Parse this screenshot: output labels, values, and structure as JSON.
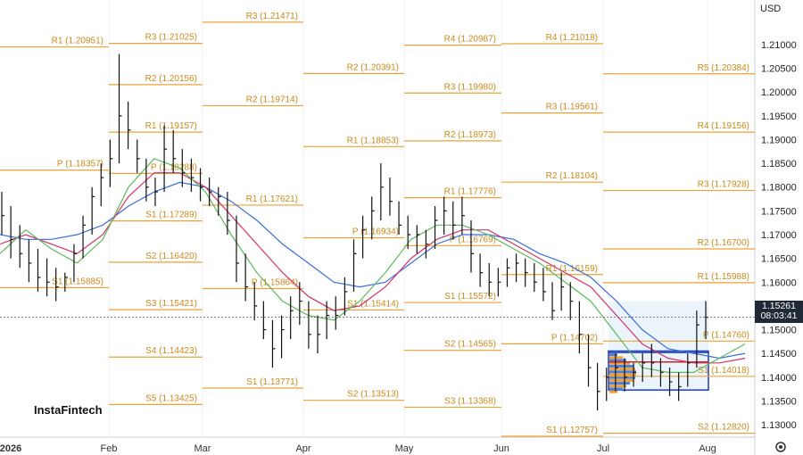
{
  "header": {
    "currency": "USD",
    "logo": "InstaFintech"
  },
  "last_price": {
    "price": "1.15261",
    "countdown": "08:03:41"
  },
  "colors": {
    "pivot_lines": "#e8a33a",
    "pivot_labels": "#c98a1e",
    "ma_blue": "#3b6fd6",
    "ma_red": "#d0336b",
    "ma_green": "#5cb85c",
    "candles": "#111111",
    "volume_profile_frame": "#1f3fb5"
  },
  "chart_data": {
    "type": "line",
    "title": "",
    "xlabel": "",
    "ylabel": "",
    "ylim": [
      1.1255,
      1.2175
    ],
    "x_ticks": [
      "2026",
      "Feb",
      "Mar",
      "Apr",
      "May",
      "Jun",
      "Jul",
      "Aug"
    ],
    "y_ticks": [
      "1.21000",
      "1.20500",
      "1.20000",
      "1.19500",
      "1.19000",
      "1.18500",
      "1.18000",
      "1.17500",
      "1.17000",
      "1.16500",
      "1.16000",
      "1.15500",
      "1.15000",
      "1.14500",
      "1.14000",
      "1.13500",
      "1.13000"
    ],
    "y_values": [
      1.21,
      1.205,
      1.2,
      1.195,
      1.19,
      1.185,
      1.18,
      1.175,
      1.17,
      1.165,
      1.16,
      1.155,
      1.15,
      1.145,
      1.14,
      1.135,
      1.13
    ],
    "pivot_periods": [
      {
        "month": "Feb",
        "levels": [
          {
            "label": "R1 (1.20951)",
            "value": 1.20951
          },
          {
            "label": "P (1.18357)",
            "value": 1.18357
          },
          {
            "label": "S1 (1.15885)",
            "value": 1.15885
          }
        ]
      },
      {
        "month": "Mar",
        "levels": [
          {
            "label": "R3 (1.21025)",
            "value": 1.21025
          },
          {
            "label": "R2 (1.20156)",
            "value": 1.20156
          },
          {
            "label": "R1 (1.19157)",
            "value": 1.19157
          },
          {
            "label": "P (1.18288)",
            "value": 1.18288
          },
          {
            "label": "S1 (1.17289)",
            "value": 1.17289
          },
          {
            "label": "S2 (1.16420)",
            "value": 1.1642
          },
          {
            "label": "S3 (1.15421)",
            "value": 1.15421
          },
          {
            "label": "S4 (1.14423)",
            "value": 1.14423
          },
          {
            "label": "S5 (1.13425)",
            "value": 1.13425
          }
        ]
      },
      {
        "month": "Apr",
        "levels": [
          {
            "label": "R3 (1.21471)",
            "value": 1.21471
          },
          {
            "label": "R2 (1.19714)",
            "value": 1.19714
          },
          {
            "label": "R1 (1.17621)",
            "value": 1.17621
          },
          {
            "label": "P (1.15864)",
            "value": 1.15864
          },
          {
            "label": "S1 (1.13771)",
            "value": 1.13771
          }
        ]
      },
      {
        "month": "May",
        "levels": [
          {
            "label": "R2 (1.20391)",
            "value": 1.20391
          },
          {
            "label": "R1 (1.18853)",
            "value": 1.18853
          },
          {
            "label": "P (1.16934)",
            "value": 1.16934
          },
          {
            "label": "S1 (1.15414)",
            "value": 1.15414
          },
          {
            "label": "S2 (1.13513)",
            "value": 1.13513
          }
        ]
      },
      {
        "month": "Jun",
        "levels": [
          {
            "label": "R4 (1.20987)",
            "value": 1.20987
          },
          {
            "label": "R3 (1.19980)",
            "value": 1.1998
          },
          {
            "label": "R2 (1.18973)",
            "value": 1.18973
          },
          {
            "label": "R1 (1.17776)",
            "value": 1.17776
          },
          {
            "label": "P (1.16769)",
            "value": 1.16769
          },
          {
            "label": "S1 (1.15572)",
            "value": 1.15572
          },
          {
            "label": "S2 (1.14565)",
            "value": 1.14565
          },
          {
            "label": "S3 (1.13368)",
            "value": 1.13368
          }
        ]
      },
      {
        "month": "Jul",
        "levels": [
          {
            "label": "R4 (1.21018)",
            "value": 1.21018
          },
          {
            "label": "R3 (1.19561)",
            "value": 1.19561
          },
          {
            "label": "R2 (1.18104)",
            "value": 1.18104
          },
          {
            "label": "R1 (1.16159)",
            "value": 1.16159
          },
          {
            "label": "P (1.14702)",
            "value": 1.14702
          },
          {
            "label": "S1 (1.12757)",
            "value": 1.12757
          }
        ]
      },
      {
        "month": "Aug",
        "levels": [
          {
            "label": "R5 (1.20384)",
            "value": 1.20384
          },
          {
            "label": "R4 (1.19156)",
            "value": 1.19156
          },
          {
            "label": "R3 (1.17928)",
            "value": 1.17928
          },
          {
            "label": "R2 (1.16700)",
            "value": 1.167
          },
          {
            "label": "R1 (1.15988)",
            "value": 1.15988
          },
          {
            "label": "P (1.14760)",
            "value": 1.1476
          },
          {
            "label": "S1 (1.14018)",
            "value": 1.14018
          },
          {
            "label": "S2 (1.12820)",
            "value": 1.1282
          }
        ]
      }
    ],
    "price_bars": [
      [
        1.179,
        1.17,
        1.174
      ],
      [
        1.176,
        1.165,
        1.169
      ],
      [
        1.172,
        1.163,
        1.166
      ],
      [
        1.169,
        1.16,
        1.164
      ],
      [
        1.167,
        1.158,
        1.161
      ],
      [
        1.165,
        1.157,
        1.16
      ],
      [
        1.163,
        1.156,
        1.159
      ],
      [
        1.162,
        1.158,
        1.161
      ],
      [
        1.168,
        1.16,
        1.166
      ],
      [
        1.174,
        1.165,
        1.172
      ],
      [
        1.18,
        1.17,
        1.178
      ],
      [
        1.185,
        1.176,
        1.182
      ],
      [
        1.19,
        1.18,
        1.186
      ],
      [
        1.208,
        1.185,
        1.195
      ],
      [
        1.198,
        1.188,
        1.192
      ],
      [
        1.19,
        1.183,
        1.186
      ],
      [
        1.186,
        1.177,
        1.18
      ],
      [
        1.182,
        1.176,
        1.179
      ],
      [
        1.193,
        1.179,
        1.188
      ],
      [
        1.192,
        1.183,
        1.186
      ],
      [
        1.188,
        1.18,
        1.183
      ],
      [
        1.186,
        1.179,
        1.182
      ],
      [
        1.184,
        1.177,
        1.18
      ],
      [
        1.182,
        1.176,
        1.179
      ],
      [
        1.18,
        1.174,
        1.178
      ],
      [
        1.179,
        1.17,
        1.173
      ],
      [
        1.174,
        1.16,
        1.164
      ],
      [
        1.166,
        1.156,
        1.159
      ],
      [
        1.16,
        1.152,
        1.155
      ],
      [
        1.156,
        1.148,
        1.15
      ],
      [
        1.152,
        1.142,
        1.146
      ],
      [
        1.153,
        1.144,
        1.15
      ],
      [
        1.157,
        1.148,
        1.154
      ],
      [
        1.16,
        1.151,
        1.156
      ],
      [
        1.156,
        1.146,
        1.149
      ],
      [
        1.153,
        1.145,
        1.149
      ],
      [
        1.156,
        1.148,
        1.153
      ],
      [
        1.157,
        1.15,
        1.153
      ],
      [
        1.161,
        1.153,
        1.158
      ],
      [
        1.169,
        1.158,
        1.166
      ],
      [
        1.174,
        1.165,
        1.171
      ],
      [
        1.178,
        1.169,
        1.175
      ],
      [
        1.185,
        1.173,
        1.18
      ],
      [
        1.182,
        1.174,
        1.177
      ],
      [
        1.177,
        1.17,
        1.172
      ],
      [
        1.174,
        1.167,
        1.17
      ],
      [
        1.172,
        1.166,
        1.17
      ],
      [
        1.171,
        1.165,
        1.168
      ],
      [
        1.176,
        1.167,
        1.173
      ],
      [
        1.178,
        1.17,
        1.175
      ],
      [
        1.177,
        1.169,
        1.172
      ],
      [
        1.178,
        1.17,
        1.174
      ],
      [
        1.173,
        1.162,
        1.166
      ],
      [
        1.166,
        1.159,
        1.162
      ],
      [
        1.164,
        1.157,
        1.16
      ],
      [
        1.163,
        1.157,
        1.16
      ],
      [
        1.165,
        1.159,
        1.163
      ],
      [
        1.166,
        1.16,
        1.164
      ],
      [
        1.165,
        1.159,
        1.162
      ],
      [
        1.164,
        1.158,
        1.16
      ],
      [
        1.163,
        1.156,
        1.158
      ],
      [
        1.16,
        1.152,
        1.154
      ],
      [
        1.162,
        1.154,
        1.159
      ],
      [
        1.16,
        1.152,
        1.156
      ],
      [
        1.156,
        1.145,
        1.149
      ],
      [
        1.149,
        1.138,
        1.142
      ],
      [
        1.143,
        1.133,
        1.137
      ],
      [
        1.142,
        1.135,
        1.14
      ],
      [
        1.145,
        1.137,
        1.142
      ],
      [
        1.144,
        1.137,
        1.14
      ],
      [
        1.143,
        1.138,
        1.141
      ],
      [
        1.145,
        1.139,
        1.143
      ],
      [
        1.147,
        1.14,
        1.143
      ],
      [
        1.144,
        1.138,
        1.141
      ],
      [
        1.142,
        1.136,
        1.139
      ],
      [
        1.141,
        1.135,
        1.138
      ],
      [
        1.145,
        1.138,
        1.143
      ],
      [
        1.154,
        1.142,
        1.151
      ],
      [
        1.156,
        1.148,
        1.1526
      ]
    ],
    "moving_averages": [
      {
        "name": "",
        "color": "#3b6fd6",
        "values": [
          1.17,
          1.169,
          1.169,
          1.17,
          1.172,
          1.176,
          1.179,
          1.181,
          1.18,
          1.177,
          1.173,
          1.168,
          1.164,
          1.16,
          1.159,
          1.16,
          1.164,
          1.168,
          1.17,
          1.17,
          1.169,
          1.166,
          1.164,
          1.161,
          1.156,
          1.15,
          1.146,
          1.145,
          1.144,
          1.145
        ]
      },
      {
        "name": "",
        "color": "#d0336b",
        "values": [
          1.168,
          1.17,
          1.168,
          1.166,
          1.17,
          1.178,
          1.183,
          1.183,
          1.18,
          1.174,
          1.168,
          1.162,
          1.157,
          1.154,
          1.155,
          1.159,
          1.165,
          1.169,
          1.171,
          1.171,
          1.168,
          1.165,
          1.162,
          1.159,
          1.153,
          1.147,
          1.144,
          1.143,
          1.143,
          1.144
        ]
      },
      {
        "name": "",
        "color": "#5cb85c",
        "values": [
          1.166,
          1.171,
          1.167,
          1.164,
          1.169,
          1.18,
          1.186,
          1.184,
          1.179,
          1.17,
          1.162,
          1.156,
          1.153,
          1.152,
          1.156,
          1.162,
          1.169,
          1.172,
          1.172,
          1.17,
          1.167,
          1.164,
          1.16,
          1.156,
          1.149,
          1.142,
          1.141,
          1.141,
          1.144,
          1.147
        ]
      }
    ],
    "grid": false,
    "legend": "none"
  }
}
